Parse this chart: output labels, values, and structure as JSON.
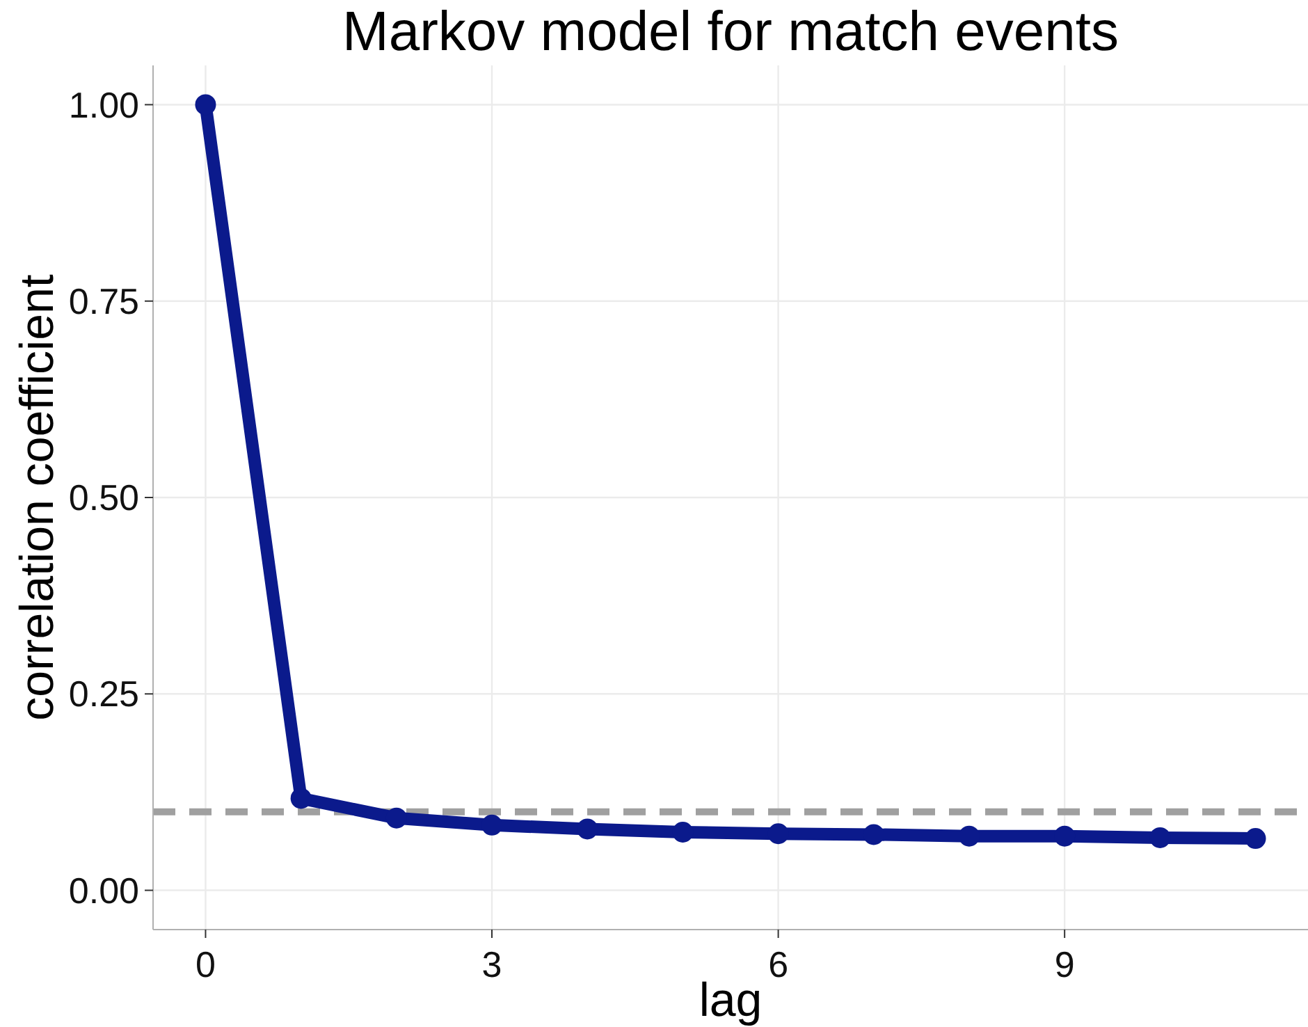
{
  "chart_data": {
    "type": "line",
    "title": "Markov model for match events",
    "xlabel": "lag",
    "ylabel": "correlation coefficient",
    "x": [
      0,
      1,
      2,
      3,
      4,
      5,
      6,
      7,
      8,
      9,
      10,
      11
    ],
    "series": [
      {
        "color": "#0b1a8c",
        "values": [
          1.0,
          0.117,
          0.092,
          0.083,
          0.078,
          0.074,
          0.072,
          0.071,
          0.069,
          0.069,
          0.067,
          0.066
        ]
      }
    ],
    "xlim": [
      -0.55,
      11.55
    ],
    "xticks": [
      0,
      3,
      6,
      9
    ],
    "ylim": [
      -0.05,
      1.05
    ],
    "yticks": [
      {
        "value": 0,
        "label": "0.00"
      },
      {
        "value": 0.25,
        "label": "0.25"
      },
      {
        "value": 0.5,
        "label": "0.50"
      },
      {
        "value": 0.75,
        "label": "0.75"
      },
      {
        "value": 1,
        "label": "1.00"
      }
    ],
    "grid": true,
    "marker": "circle",
    "line_style": "solid",
    "ref_lines": [
      {
        "axis": "y",
        "value": 0.1,
        "color": "#a0a0a0",
        "line_style": "dashed"
      }
    ]
  }
}
